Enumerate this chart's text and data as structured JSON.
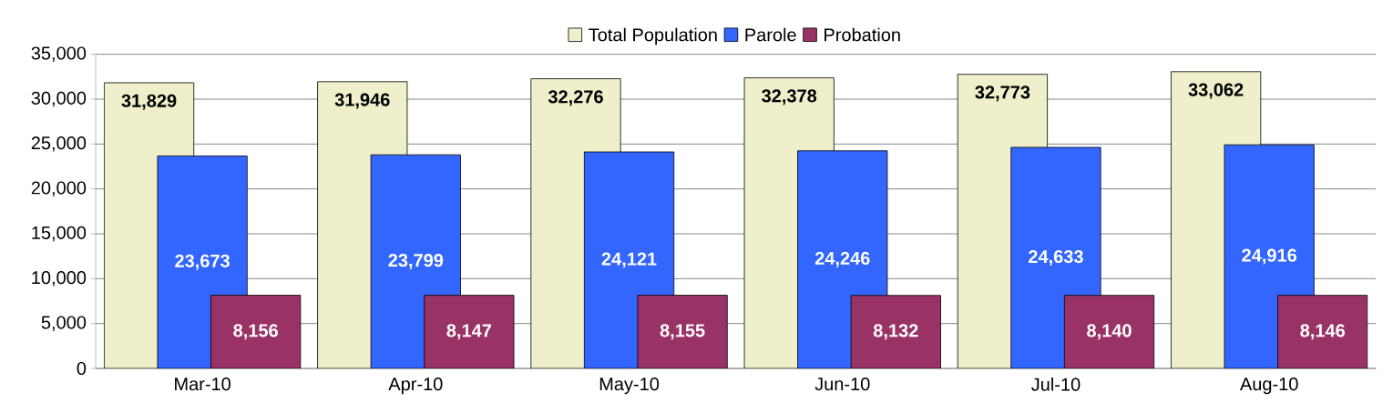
{
  "chart_data": {
    "type": "bar",
    "categories": [
      "Mar-10",
      "Apr-10",
      "May-10",
      "Jun-10",
      "Jul-10",
      "Aug-10"
    ],
    "series": [
      {
        "name": "Total Population",
        "color": "#efefcb",
        "values": [
          31829,
          31946,
          32276,
          32378,
          32773,
          33062
        ],
        "value_labels": [
          "31,829",
          "31,946",
          "32,276",
          "32,378",
          "32,773",
          "33,062"
        ]
      },
      {
        "name": "Parole",
        "color": "#3366ff",
        "values": [
          23673,
          23799,
          24121,
          24246,
          24633,
          24916
        ],
        "value_labels": [
          "23,673",
          "23,799",
          "24,121",
          "24,246",
          "24,633",
          "24,916"
        ]
      },
      {
        "name": "Probation",
        "color": "#993366",
        "values": [
          8156,
          8147,
          8155,
          8132,
          8140,
          8146
        ],
        "value_labels": [
          "8,156",
          "8,147",
          "8,155",
          "8,132",
          "8,140",
          "8,146"
        ]
      }
    ],
    "ylim": [
      0,
      35000
    ],
    "yticks": [
      {
        "value": 0,
        "label": "0"
      },
      {
        "value": 5000,
        "label": "5,000"
      },
      {
        "value": 10000,
        "label": "10,000"
      },
      {
        "value": 15000,
        "label": "15,000"
      },
      {
        "value": 20000,
        "label": "20,000"
      },
      {
        "value": 25000,
        "label": "25,000"
      },
      {
        "value": 30000,
        "label": "30,000"
      },
      {
        "value": 35000,
        "label": "35,000"
      }
    ],
    "grid": "y",
    "legend": "top"
  }
}
